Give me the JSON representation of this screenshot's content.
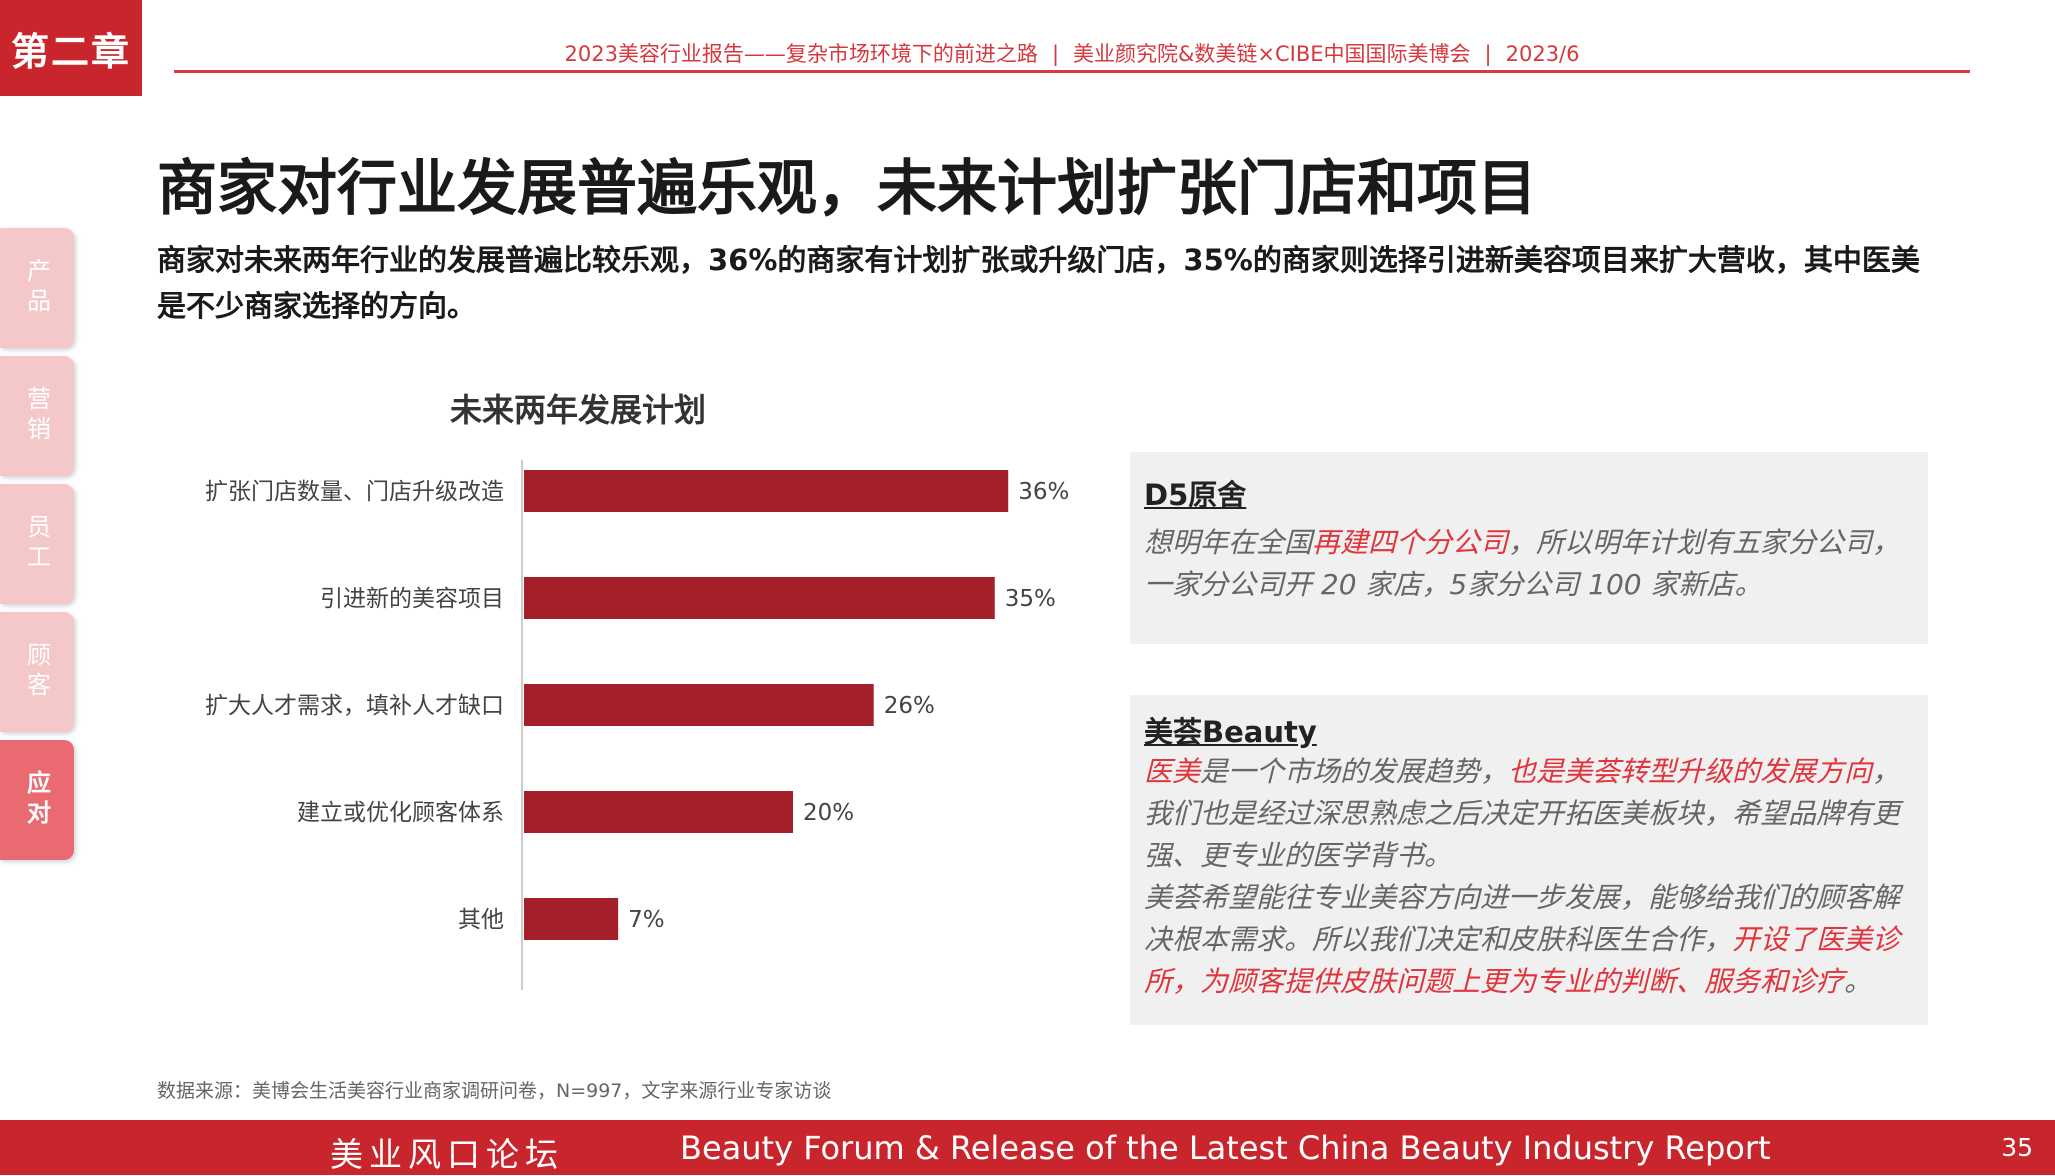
{
  "chapter": "第二章",
  "header": {
    "report": "2023美容行业报告——复杂市场环境下的前进之路",
    "org": "美业颜究院&数美链×CIBE中国国际美博会",
    "date": "2023/6"
  },
  "title": "商家对行业发展普遍乐观，未来计划扩张门店和项目",
  "subtitle": "商家对未来两年行业的发展普遍比较乐观，36%的商家有计划扩张或升级门店，35%的商家则选择引进新美容项目来扩大营收，其中医美是不少商家选择的方向。",
  "side_nav": [
    {
      "label": "产品",
      "active": false
    },
    {
      "label": "营销",
      "active": false
    },
    {
      "label": "员工",
      "active": false
    },
    {
      "label": "顾客",
      "active": false
    },
    {
      "label": "应对",
      "active": true
    }
  ],
  "chart_data": {
    "type": "bar",
    "orientation": "horizontal",
    "title": "未来两年发展计划",
    "categories": [
      "扩张门店数量、门店升级改造",
      "引进新的美容项目",
      "扩大人才需求，填补人才缺口",
      "建立或优化顾客体系",
      "其他"
    ],
    "values": [
      36,
      35,
      26,
      20,
      7
    ],
    "value_labels": [
      "36%",
      "35%",
      "26%",
      "20%",
      "7%"
    ],
    "unit": "%",
    "xlim": [
      0,
      40
    ],
    "grid": false,
    "bar_color": "#a51f2b"
  },
  "quotes": [
    {
      "title": "D5原舍",
      "segments": [
        {
          "t": "想明年在全国",
          "hl": false
        },
        {
          "t": "再建四个分公司",
          "hl": true
        },
        {
          "t": "，所以明年计划有五家分公司，一家分公司开 20 家店，5家分公司 100 家新店。",
          "hl": false
        }
      ]
    },
    {
      "title": "美荟Beauty",
      "segments": [
        {
          "t": "医美",
          "hl": true
        },
        {
          "t": "是一个市场的发展趋势，",
          "hl": false
        },
        {
          "t": "也是美荟转型升级的发展方向",
          "hl": true
        },
        {
          "t": "，我们也是经过深思熟虑之后决定开拓医美板块，希望品牌有更强、更专业的医学背书。",
          "hl": false
        },
        {
          "t": "\n美荟希望能往专业美容方向进一步发展，能够给我们的顾客解决根本需求。所以我们决定和皮肤科医生合作，",
          "hl": false
        },
        {
          "t": "开设了医美诊所，为顾客提供皮肤问题上更为专业的判断、服务和诊疗",
          "hl": true
        },
        {
          "t": "。",
          "hl": false
        }
      ]
    }
  ],
  "source": "数据来源：美博会生活美容行业商家调研问卷，N=997，文字来源行业专家访谈",
  "footer": {
    "left": "美业风口论坛",
    "middle": "Beauty Forum & Release of the Latest China Beauty Industry Report",
    "page": "35"
  }
}
